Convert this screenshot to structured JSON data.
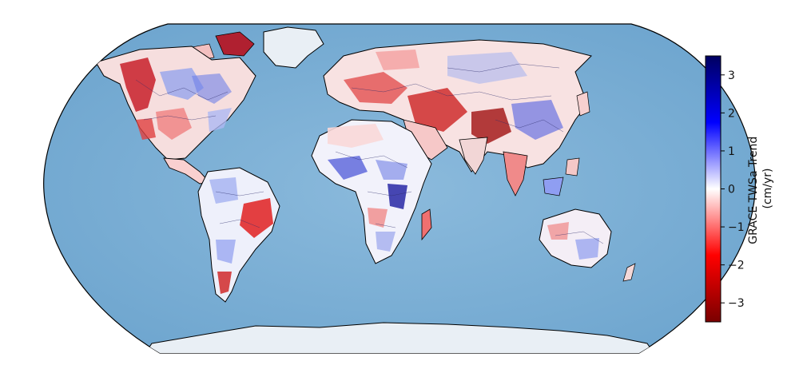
{
  "map": {
    "projection": "Robinson",
    "ocean_color": "#7fb1d6",
    "land_base_color": "#ffffff",
    "ice_color": "#e6eef5",
    "coastline_color": "#000000",
    "basin_line_color": "#2a2a6a"
  },
  "colorbar": {
    "title_line1": "GRACE TWSa Trend",
    "title_line2": "(cm/yr)",
    "colormap": "seismic_r",
    "colors": [
      "#7a0000",
      "#ff0000",
      "#ffffff",
      "#0000ff",
      "#000060"
    ],
    "range": [
      -3.5,
      3.5
    ],
    "ticks": [
      {
        "value": 3,
        "label": "3"
      },
      {
        "value": 2,
        "label": "2"
      },
      {
        "value": 1,
        "label": "1"
      },
      {
        "value": 0,
        "label": "0"
      },
      {
        "value": -1,
        "label": "−1"
      },
      {
        "value": -2,
        "label": "−2"
      },
      {
        "value": -3,
        "label": "−3"
      }
    ]
  }
}
